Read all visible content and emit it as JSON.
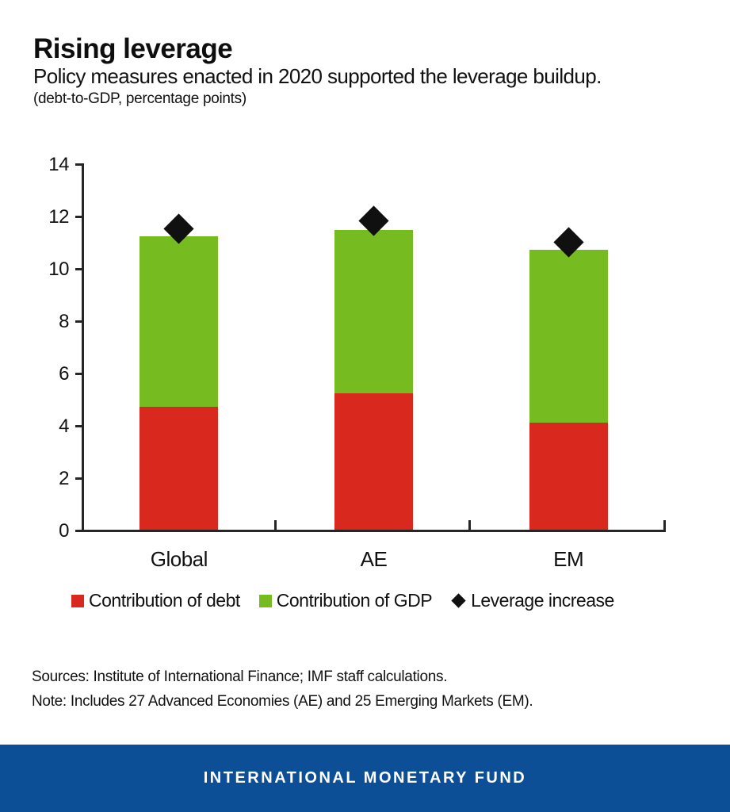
{
  "header": {
    "title": "Rising leverage",
    "subtitle": "Policy measures enacted in 2020 supported the leverage buildup.",
    "units": "(debt-to-GDP, percentage points)"
  },
  "chart_data": {
    "type": "bar",
    "stacked": true,
    "title": "Rising leverage",
    "xlabel": "",
    "ylabel": "",
    "categories": [
      "Global",
      "AE",
      "EM"
    ],
    "series": [
      {
        "name": "Contribution of debt",
        "color": "#d9291f",
        "values": [
          4.7,
          5.2,
          4.1
        ]
      },
      {
        "name": "Contribution of GDP",
        "color": "#76bc21",
        "values": [
          6.5,
          6.25,
          6.6
        ]
      }
    ],
    "markers": {
      "name": "Leverage increase",
      "shape": "diamond",
      "color": "#101010",
      "values": [
        11.5,
        11.8,
        11.0
      ]
    },
    "ylim": [
      0,
      14
    ],
    "ytick_step": 2,
    "grid": false,
    "legend_position": "bottom",
    "axis_color": "#262626"
  },
  "notes": {
    "sources": "Sources: Institute of International Finance; IMF staff calculations.",
    "note": "Note: Includes 27 Advanced Economies (AE) and 25 Emerging Markets (EM)."
  },
  "footer": {
    "text": "INTERNATIONAL MONETARY FUND",
    "background": "#0d4f96"
  }
}
